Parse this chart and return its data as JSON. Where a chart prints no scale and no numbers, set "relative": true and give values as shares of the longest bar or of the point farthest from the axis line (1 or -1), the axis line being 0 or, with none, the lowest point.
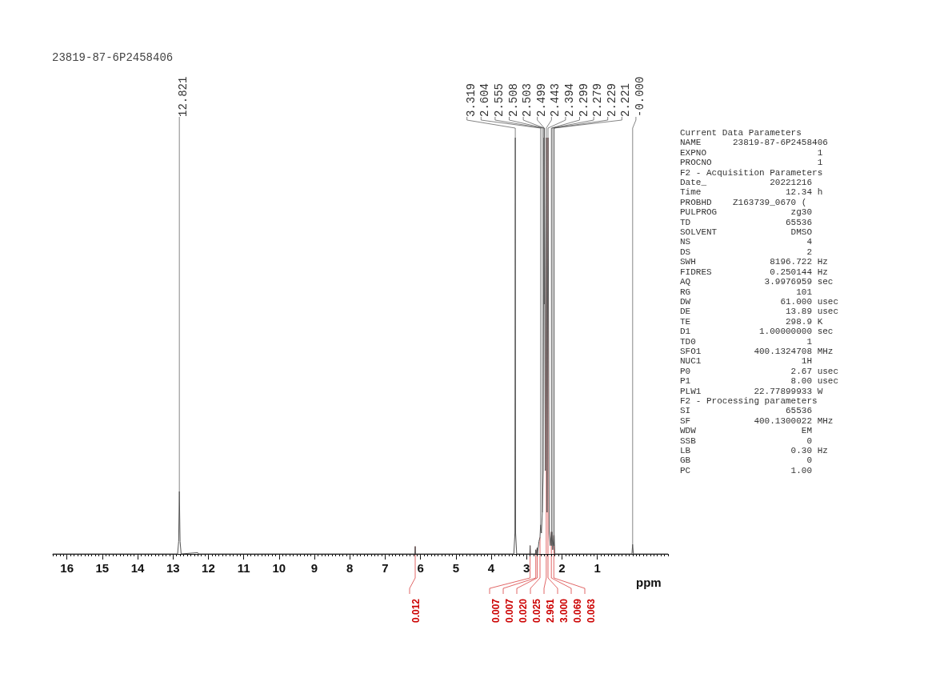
{
  "chart_data": {
    "type": "line",
    "title": "23819-87-6P2458406",
    "xlabel": "ppm",
    "relative": true,
    "xlim": [
      16.4,
      -1.0
    ],
    "xticks": [
      16,
      15,
      14,
      13,
      12,
      11,
      10,
      9,
      8,
      7,
      6,
      5,
      4,
      3,
      2,
      1
    ],
    "series": [
      {
        "color": "#555555",
        "x": [
          16.4,
          12.87,
          12.84,
          12.821,
          12.8,
          12.77,
          12.3,
          12.28,
          6.16,
          6.15,
          6.14,
          3.36,
          3.33,
          3.319,
          3.31,
          3.28,
          2.91,
          2.9,
          2.89,
          2.75,
          2.74,
          2.73,
          2.7,
          2.69,
          2.65,
          2.62,
          2.604,
          2.58,
          2.555,
          2.53,
          2.508,
          2.505,
          2.503,
          2.501,
          2.499,
          2.47,
          2.443,
          2.42,
          2.394,
          2.36,
          2.33,
          2.299,
          2.29,
          2.279,
          2.26,
          2.229,
          2.225,
          2.221,
          2.2,
          0.02,
          0.0,
          -0.02,
          -1.0
        ],
        "values": [
          0,
          0,
          0.03,
          0.15,
          0.03,
          0,
          0.003,
          0,
          0,
          0.018,
          0,
          0,
          0.05,
          1,
          0.05,
          0,
          0,
          0.02,
          0,
          0,
          0.01,
          0,
          0.015,
          0,
          0.03,
          0.04,
          0.07,
          0.05,
          0.1,
          0.2,
          1,
          0.6,
          1,
          0.6,
          1,
          0.2,
          1,
          0.1,
          1,
          0.05,
          0.02,
          0.053,
          0.02,
          0.053,
          0.01,
          0.045,
          0.02,
          0.045,
          0,
          0,
          0.023,
          0,
          0
        ]
      }
    ],
    "annotations": [
      {
        "text": "12.821",
        "x": 12.821,
        "y": 0.15
      },
      {
        "text": "3.319",
        "x": 3.319,
        "y": 1
      },
      {
        "text": "2.604",
        "x": 2.604,
        "y": 0.07
      },
      {
        "text": "2.555",
        "x": 2.555,
        "y": 0.1
      },
      {
        "text": "2.508",
        "x": 2.508,
        "y": 1
      },
      {
        "text": "2.503",
        "x": 2.503,
        "y": 1
      },
      {
        "text": "2.499",
        "x": 2.499,
        "y": 1
      },
      {
        "text": "2.443",
        "x": 2.443,
        "y": 1
      },
      {
        "text": "2.394",
        "x": 2.394,
        "y": 1
      },
      {
        "text": "2.299",
        "x": 2.299,
        "y": 0.053
      },
      {
        "text": "2.279",
        "x": 2.279,
        "y": 0.053
      },
      {
        "text": "2.229",
        "x": 2.229,
        "y": 0.045
      },
      {
        "text": "2.221",
        "x": 2.221,
        "y": 0.045
      },
      {
        "text": "-0.000",
        "x": 0.0,
        "y": 0.023
      },
      {
        "text": "0.012",
        "x": 6.15,
        "y": 0.018
      },
      {
        "text": "0.007",
        "x": 2.9,
        "y": 0.02
      },
      {
        "text": "0.007",
        "x": 2.74,
        "y": 0.01
      },
      {
        "text": "0.020",
        "x": 2.7,
        "y": 0.015
      },
      {
        "text": "0.025",
        "x": 2.62,
        "y": 0.04
      },
      {
        "text": "2.961",
        "x": 2.443,
        "y": 1
      },
      {
        "text": "3.000",
        "x": 2.394,
        "y": 1
      },
      {
        "text": "0.069",
        "x": 2.299,
        "y": 0.053
      },
      {
        "text": "0.063",
        "x": 2.229,
        "y": 0.045
      },
      "Current Data Parameters",
      "NAME      23819-87-6P2458406",
      "EXPNO                     1",
      "PROCNO                    1",
      "F2 - Acquisition Parameters",
      "Date_            20221216",
      "Time                12.34 h",
      "PROBHD    Z163739_0670 (",
      "PULPROG              zg30",
      "TD                  65536",
      "SOLVENT              DMSO",
      "NS                      4",
      "DS                      2",
      "SWH              8196.722 Hz",
      "FIDRES           0.250144 Hz",
      "AQ              3.9976959 sec",
      "RG                    101",
      "DW                 61.000 usec",
      "DE                  13.89 usec",
      "TE                  298.9 K",
      "D1             1.00000000 sec",
      "TD0                     1",
      "SFO1          400.1324708 MHz",
      "NUC1                   1H",
      "P0                   2.67 usec",
      "P1                   8.00 usec",
      "PLW1          22.77899933 W",
      "F2 - Processing parameters",
      "SI                  65536",
      "SF            400.1300022 MHz",
      "WDW                    EM",
      "SSB                     0",
      "LB                   0.30 Hz",
      "GB                      0",
      "PC                   1.00"
    ]
  }
}
